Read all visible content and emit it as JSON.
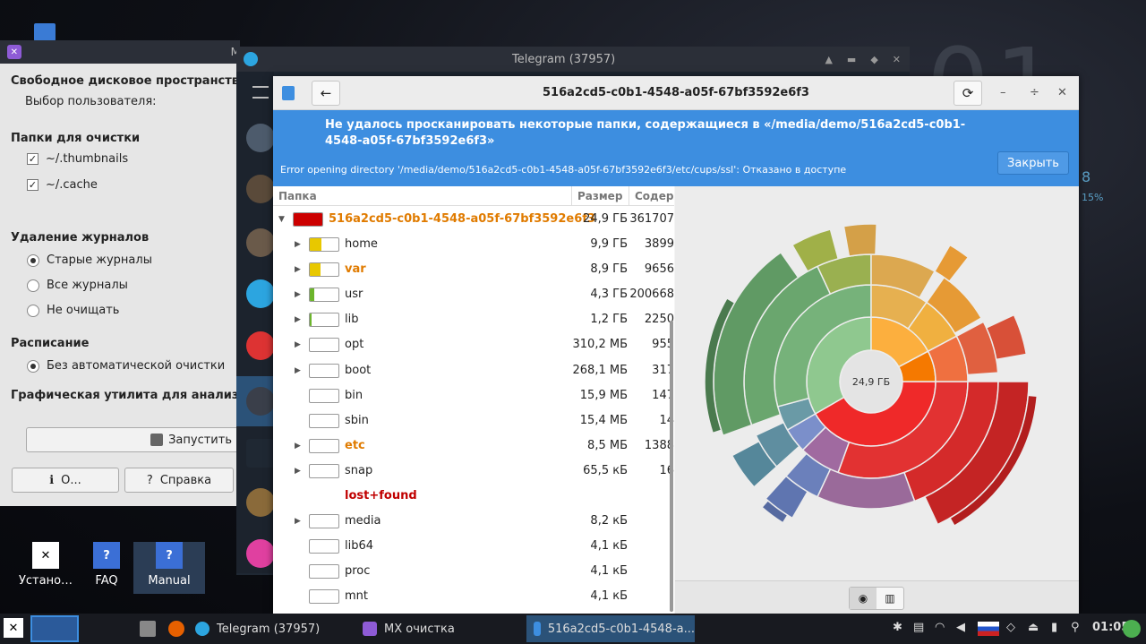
{
  "desktop": {
    "clock": "01",
    "side_value_1": "8",
    "side_value_2": "15%",
    "icons": [
      {
        "label": "Устано…"
      },
      {
        "label": "FAQ"
      },
      {
        "label": "Manual"
      }
    ]
  },
  "mx_cleanup": {
    "title_fragment": "M",
    "free_space_label": "Свободное дисковое пространство д",
    "user_select_label": "Выбор пользователя:",
    "folders_header": "Папки для очистки",
    "folders": [
      {
        "label": "~/.thumbnails",
        "checked": true
      },
      {
        "label": "~/.cache",
        "checked": true
      }
    ],
    "logs_header": "Удаление журналов",
    "log_options": [
      {
        "label": "Старые журналы",
        "selected": true
      },
      {
        "label": "Все журналы",
        "selected": false
      },
      {
        "label": "Не очищать",
        "selected": false
      }
    ],
    "schedule_header": "Расписание",
    "schedule_option": "Без автоматической очистки",
    "graphic_util_label": "Графическая утилита для анализа и",
    "run_button": "Запустить",
    "about_button": "О...",
    "help_button": "Справка"
  },
  "telegram": {
    "title": "Telegram (37957)"
  },
  "disk_usage": {
    "title": "516a2cd5-c0b1-4548-a05f-67bf3592e6f3",
    "banner_heading": "Не удалось просканировать некоторые папки, содержащиеся в «/media/demo/516a2cd5-c0b1-4548-a05f-67bf3592e6f3»",
    "banner_detail": "Error opening directory '/media/demo/516a2cd5-c0b1-4548-a05f-67bf3592e6f3/etc/cups/ssl': Отказано в доступе",
    "close_button": "Закрыть",
    "columns": {
      "folder": "Папка",
      "size": "Размер",
      "contents": "Содерж"
    },
    "root": {
      "name": "516a2cd5-c0b1-4548-a05f-67bf3592e6f3",
      "size": "24,9 ГБ",
      "contents": "361707",
      "fill": 1.0,
      "color": "#cc0000"
    },
    "rows": [
      {
        "name": "home",
        "size": "9,9 ГБ",
        "contents": "3899",
        "fill": 0.4,
        "color": "#e8c800",
        "expandable": true,
        "highlight": false
      },
      {
        "name": "var",
        "size": "8,9 ГБ",
        "contents": "9656",
        "fill": 0.36,
        "color": "#e8c800",
        "expandable": true,
        "highlight": true
      },
      {
        "name": "usr",
        "size": "4,3 ГБ",
        "contents": "200668",
        "fill": 0.17,
        "color": "#6cb52c",
        "expandable": true,
        "highlight": false
      },
      {
        "name": "lib",
        "size": "1,2 ГБ",
        "contents": "2250",
        "fill": 0.05,
        "color": "#6cb52c",
        "expandable": true,
        "highlight": false
      },
      {
        "name": "opt",
        "size": "310,2 МБ",
        "contents": "955",
        "fill": 0.0,
        "color": "#6cb52c",
        "expandable": true,
        "highlight": false
      },
      {
        "name": "boot",
        "size": "268,1 МБ",
        "contents": "317",
        "fill": 0.0,
        "color": "#6cb52c",
        "expandable": true,
        "highlight": false
      },
      {
        "name": "bin",
        "size": "15,9 МБ",
        "contents": "147",
        "fill": 0.0,
        "color": "#6cb52c",
        "expandable": false,
        "highlight": false
      },
      {
        "name": "sbin",
        "size": "15,4 МБ",
        "contents": "14",
        "fill": 0.0,
        "color": "#6cb52c",
        "expandable": false,
        "highlight": false
      },
      {
        "name": "etc",
        "size": "8,5 МБ",
        "contents": "1388",
        "fill": 0.0,
        "color": "#6cb52c",
        "expandable": true,
        "highlight": true
      },
      {
        "name": "snap",
        "size": "65,5 кБ",
        "contents": "16",
        "fill": 0.0,
        "color": "#6cb52c",
        "expandable": true,
        "highlight": false
      },
      {
        "name": "lost+found",
        "size": "",
        "contents": "",
        "fill": 0.0,
        "color": "#6cb52c",
        "expandable": false,
        "highlight": false,
        "error": true
      },
      {
        "name": "media",
        "size": "8,2 кБ",
        "contents": "",
        "fill": 0.0,
        "color": "#6cb52c",
        "expandable": true,
        "highlight": false
      },
      {
        "name": "lib64",
        "size": "4,1 кБ",
        "contents": "",
        "fill": 0.0,
        "color": "#6cb52c",
        "expandable": false,
        "highlight": false
      },
      {
        "name": "proc",
        "size": "4,1 кБ",
        "contents": "",
        "fill": 0.0,
        "color": "#6cb52c",
        "expandable": false,
        "highlight": false
      },
      {
        "name": "mnt",
        "size": "4,1 кБ",
        "contents": "",
        "fill": 0.0,
        "color": "#6cb52c",
        "expandable": false,
        "highlight": false
      }
    ],
    "chart_center_label": "24,9 ГБ"
  },
  "taskbar": {
    "tasks": [
      {
        "label": "Telegram (37957)"
      },
      {
        "label": "MX очистка"
      },
      {
        "label": "516a2cd5-c0b1-4548-a..."
      }
    ],
    "time": "01:05"
  },
  "colors": {
    "accent_blue": "#3d8ee0",
    "highlight_orange": "#e07b00",
    "error_red": "#c00000"
  }
}
